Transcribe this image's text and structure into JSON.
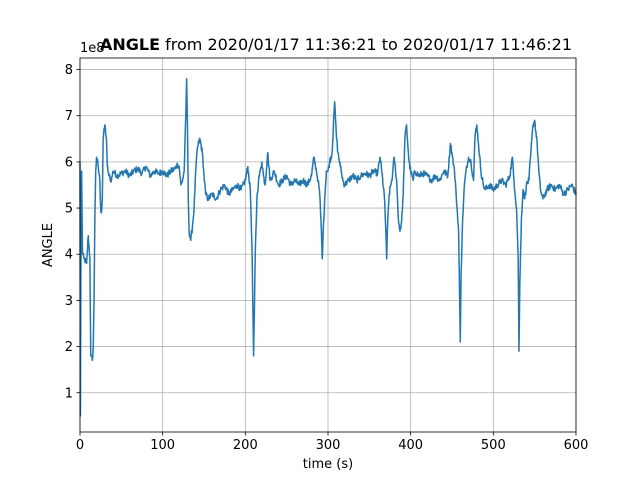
{
  "chart_data": {
    "type": "line",
    "title_bold": "ANGLE",
    "title_rest": " from 2020/01/17 11:36:21 to 2020/01/17 11:46:21",
    "xlabel": "time (s)",
    "ylabel": "ANGLE",
    "y_offset_label": "1e8",
    "xlim": [
      0,
      600
    ],
    "ylim": [
      0.15,
      8.25
    ],
    "y_unit_note": "values in units of 1e8",
    "xticks": [
      0,
      100,
      200,
      300,
      400,
      500,
      600
    ],
    "yticks": [
      1,
      2,
      3,
      4,
      5,
      6,
      7,
      8
    ],
    "grid": true,
    "series": [
      {
        "color": "#1f77b4",
        "points": [
          [
            0,
            6.0
          ],
          [
            0.5,
            0.5
          ],
          [
            1,
            3.5
          ],
          [
            2,
            5.8
          ],
          [
            3,
            4.0
          ],
          [
            5,
            3.9
          ],
          [
            8,
            3.8
          ],
          [
            10,
            4.4
          ],
          [
            12,
            3.9
          ],
          [
            13,
            1.8
          ],
          [
            15,
            1.7
          ],
          [
            16,
            2.0
          ],
          [
            17,
            3.0
          ],
          [
            18,
            4.8
          ],
          [
            19,
            5.8
          ],
          [
            20,
            6.1
          ],
          [
            22,
            5.9
          ],
          [
            24,
            5.6
          ],
          [
            25,
            5.0
          ],
          [
            26,
            4.9
          ],
          [
            27,
            5.2
          ],
          [
            28,
            6.5
          ],
          [
            30,
            6.8
          ],
          [
            32,
            6.5
          ],
          [
            33,
            5.9
          ],
          [
            35,
            5.7
          ],
          [
            38,
            5.6
          ],
          [
            40,
            5.8
          ],
          [
            45,
            5.7
          ],
          [
            50,
            5.75
          ],
          [
            55,
            5.8
          ],
          [
            60,
            5.7
          ],
          [
            65,
            5.8
          ],
          [
            70,
            5.85
          ],
          [
            75,
            5.75
          ],
          [
            80,
            5.9
          ],
          [
            85,
            5.7
          ],
          [
            90,
            5.8
          ],
          [
            95,
            5.75
          ],
          [
            100,
            5.8
          ],
          [
            105,
            5.7
          ],
          [
            110,
            5.8
          ],
          [
            115,
            5.85
          ],
          [
            118,
            5.95
          ],
          [
            120,
            5.9
          ],
          [
            122,
            5.5
          ],
          [
            124,
            5.6
          ],
          [
            126,
            5.8
          ],
          [
            128,
            7.0
          ],
          [
            129,
            7.8
          ],
          [
            130,
            6.8
          ],
          [
            131,
            5.2
          ],
          [
            132,
            4.5
          ],
          [
            134,
            4.3
          ],
          [
            136,
            4.6
          ],
          [
            138,
            5.0
          ],
          [
            140,
            5.8
          ],
          [
            142,
            6.3
          ],
          [
            145,
            6.5
          ],
          [
            148,
            6.2
          ],
          [
            150,
            5.7
          ],
          [
            152,
            5.3
          ],
          [
            155,
            5.2
          ],
          [
            160,
            5.3
          ],
          [
            165,
            5.2
          ],
          [
            170,
            5.4
          ],
          [
            175,
            5.5
          ],
          [
            180,
            5.3
          ],
          [
            185,
            5.4
          ],
          [
            190,
            5.5
          ],
          [
            195,
            5.4
          ],
          [
            200,
            5.6
          ],
          [
            203,
            5.9
          ],
          [
            206,
            5.4
          ],
          [
            208,
            4.2
          ],
          [
            210,
            1.8
          ],
          [
            211,
            2.8
          ],
          [
            212,
            4.0
          ],
          [
            214,
            5.2
          ],
          [
            216,
            5.6
          ],
          [
            218,
            5.8
          ],
          [
            220,
            6.0
          ],
          [
            222,
            5.7
          ],
          [
            224,
            5.5
          ],
          [
            227,
            6.2
          ],
          [
            230,
            5.6
          ],
          [
            235,
            5.8
          ],
          [
            240,
            5.5
          ],
          [
            245,
            5.6
          ],
          [
            250,
            5.7
          ],
          [
            255,
            5.5
          ],
          [
            260,
            5.6
          ],
          [
            265,
            5.5
          ],
          [
            270,
            5.6
          ],
          [
            275,
            5.5
          ],
          [
            280,
            5.7
          ],
          [
            283,
            6.1
          ],
          [
            286,
            5.8
          ],
          [
            288,
            5.6
          ],
          [
            290,
            5.3
          ],
          [
            292,
            4.5
          ],
          [
            293,
            3.9
          ],
          [
            294,
            4.4
          ],
          [
            296,
            5.2
          ],
          [
            298,
            5.8
          ],
          [
            300,
            5.8
          ],
          [
            302,
            6.0
          ],
          [
            305,
            6.2
          ],
          [
            307,
            7.0
          ],
          [
            308,
            7.3
          ],
          [
            310,
            6.6
          ],
          [
            312,
            6.2
          ],
          [
            315,
            5.9
          ],
          [
            318,
            5.6
          ],
          [
            320,
            5.5
          ],
          [
            325,
            5.6
          ],
          [
            330,
            5.7
          ],
          [
            335,
            5.6
          ],
          [
            340,
            5.7
          ],
          [
            345,
            5.75
          ],
          [
            350,
            5.7
          ],
          [
            355,
            5.8
          ],
          [
            360,
            5.75
          ],
          [
            363,
            6.1
          ],
          [
            365,
            5.8
          ],
          [
            368,
            5.3
          ],
          [
            370,
            4.5
          ],
          [
            371,
            3.9
          ],
          [
            372,
            4.6
          ],
          [
            374,
            5.3
          ],
          [
            376,
            5.5
          ],
          [
            378,
            5.7
          ],
          [
            380,
            6.1
          ],
          [
            383,
            5.6
          ],
          [
            385,
            4.8
          ],
          [
            387,
            4.5
          ],
          [
            389,
            4.7
          ],
          [
            391,
            5.3
          ],
          [
            393,
            6.5
          ],
          [
            395,
            6.8
          ],
          [
            398,
            6.0
          ],
          [
            400,
            5.8
          ],
          [
            403,
            5.6
          ],
          [
            405,
            5.8
          ],
          [
            410,
            5.7
          ],
          [
            415,
            5.75
          ],
          [
            420,
            5.7
          ],
          [
            425,
            5.6
          ],
          [
            430,
            5.7
          ],
          [
            435,
            5.6
          ],
          [
            440,
            5.8
          ],
          [
            445,
            5.7
          ],
          [
            448,
            6.4
          ],
          [
            450,
            6.2
          ],
          [
            453,
            5.8
          ],
          [
            455,
            5.3
          ],
          [
            458,
            4.5
          ],
          [
            460,
            2.1
          ],
          [
            461,
            3.6
          ],
          [
            463,
            4.8
          ],
          [
            465,
            5.5
          ],
          [
            467,
            5.8
          ],
          [
            470,
            6.1
          ],
          [
            473,
            6.0
          ],
          [
            476,
            5.6
          ],
          [
            478,
            6.6
          ],
          [
            480,
            6.8
          ],
          [
            482,
            6.4
          ],
          [
            485,
            5.8
          ],
          [
            488,
            5.5
          ],
          [
            490,
            5.4
          ],
          [
            495,
            5.5
          ],
          [
            500,
            5.4
          ],
          [
            505,
            5.5
          ],
          [
            510,
            5.6
          ],
          [
            515,
            5.5
          ],
          [
            520,
            5.7
          ],
          [
            523,
            6.1
          ],
          [
            525,
            5.6
          ],
          [
            528,
            5.0
          ],
          [
            530,
            4.0
          ],
          [
            531,
            1.9
          ],
          [
            532,
            3.3
          ],
          [
            534,
            4.8
          ],
          [
            536,
            5.4
          ],
          [
            538,
            5.2
          ],
          [
            540,
            5.5
          ],
          [
            543,
            5.6
          ],
          [
            545,
            6.1
          ],
          [
            548,
            6.8
          ],
          [
            550,
            6.9
          ],
          [
            553,
            6.4
          ],
          [
            555,
            5.8
          ],
          [
            557,
            5.4
          ],
          [
            560,
            5.2
          ],
          [
            565,
            5.4
          ],
          [
            570,
            5.5
          ],
          [
            575,
            5.4
          ],
          [
            580,
            5.5
          ],
          [
            585,
            5.3
          ],
          [
            590,
            5.4
          ],
          [
            595,
            5.5
          ],
          [
            600,
            5.3
          ]
        ]
      }
    ]
  }
}
